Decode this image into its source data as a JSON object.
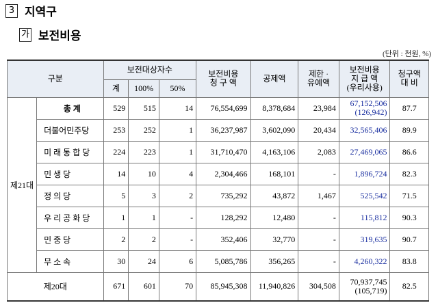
{
  "header": {
    "section_number": "3",
    "section_title": "지역구",
    "subsection_mark": "가",
    "subsection_title": "보전비용",
    "unit": "(단위 : 천원, %)"
  },
  "table": {
    "head_top": [
      {
        "lines": [
          "구분"
        ],
        "colspan": 2,
        "rowspan": 2
      },
      {
        "lines": [
          "보전대상자수"
        ],
        "colspan": 3,
        "rowspan": 1
      },
      {
        "lines": [
          "보전비용",
          "청 구 액"
        ],
        "colspan": 1,
        "rowspan": 2
      },
      {
        "lines": [
          "공제액"
        ],
        "colspan": 1,
        "rowspan": 2
      },
      {
        "lines": [
          "제한 ·",
          "유예액"
        ],
        "colspan": 1,
        "rowspan": 2
      },
      {
        "lines": [
          "보전비용",
          "지 급 액",
          "(우리사용)"
        ],
        "colspan": 1,
        "rowspan": 2
      },
      {
        "lines": [
          "청구액",
          "대 비"
        ],
        "colspan": 1,
        "rowspan": 2
      }
    ],
    "head_sub": [
      "계",
      "100%",
      "50%"
    ],
    "group_label": "제21대",
    "rows": [
      {
        "label": "총  계",
        "cells": [
          "529",
          "515",
          "14",
          "76,554,699",
          "8,378,684",
          "23,984",
          "67,152,506",
          "87.7"
        ],
        "pay_note": "(126,942)"
      },
      {
        "label": "더불어민주당",
        "cells": [
          "253",
          "252",
          "1",
          "36,237,987",
          "3,602,090",
          "20,434",
          "32,565,406",
          "89.9"
        ]
      },
      {
        "label": "미 래 통 합 당",
        "cells": [
          "224",
          "223",
          "1",
          "31,710,470",
          "4,163,106",
          "2,083",
          "27,469,065",
          "86.6"
        ]
      },
      {
        "label": "민  생  당",
        "cells": [
          "14",
          "10",
          "4",
          "2,304,466",
          "168,101",
          "-",
          "1,896,724",
          "82.3"
        ]
      },
      {
        "label": "정  의  당",
        "cells": [
          "5",
          "3",
          "2",
          "735,292",
          "43,872",
          "1,467",
          "525,542",
          "71.5"
        ]
      },
      {
        "label": "우 리 공 화 당",
        "cells": [
          "1",
          "1",
          "-",
          "128,292",
          "12,480",
          "-",
          "115,812",
          "90.3"
        ]
      },
      {
        "label": "민  중  당",
        "cells": [
          "2",
          "2",
          "-",
          "352,406",
          "32,770",
          "-",
          "319,635",
          "90.7"
        ]
      },
      {
        "label": "무  소  속",
        "cells": [
          "30",
          "24",
          "6",
          "5,085,786",
          "356,265",
          "-",
          "4,260,322",
          "83.8"
        ]
      }
    ],
    "last_row": {
      "label": "제20대",
      "cells": [
        "671",
        "601",
        "70",
        "85,945,308",
        "11,940,826",
        "304,508",
        "70,937,745",
        "82.5"
      ],
      "pay_note": "(105,719)"
    }
  }
}
